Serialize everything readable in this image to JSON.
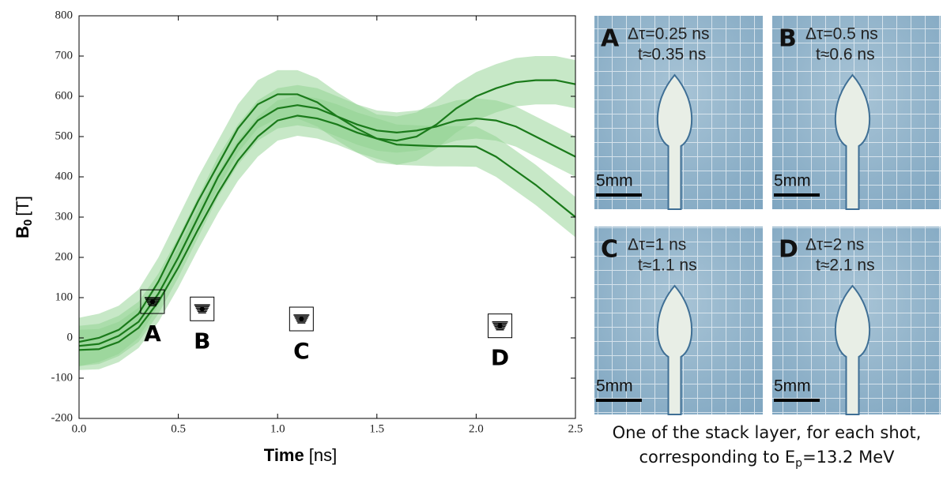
{
  "chart_data": {
    "type": "line",
    "ylabel": {
      "main": "B",
      "sub": "0",
      "unit": "[T]"
    },
    "xlabel": {
      "main": "Time",
      "unit": "[ns]"
    },
    "x": [
      0,
      0.1,
      0.2,
      0.3,
      0.4,
      0.5,
      0.6,
      0.7,
      0.8,
      0.9,
      1.0,
      1.1,
      1.2,
      1.3,
      1.4,
      1.5,
      1.6,
      1.7,
      1.8,
      1.9,
      2.0,
      2.1,
      2.2,
      2.3,
      2.4,
      2.5
    ],
    "series": [
      {
        "color": "#1a7a1a",
        "error": 60,
        "values": [
          -10,
          0,
          20,
          60,
          140,
          240,
          340,
          430,
          520,
          580,
          605,
          605,
          585,
          550,
          520,
          495,
          490,
          500,
          530,
          570,
          600,
          620,
          635,
          640,
          640,
          630
        ]
      },
      {
        "color": "#1a7a1a",
        "error": 50,
        "values": [
          -20,
          -15,
          5,
          40,
          110,
          200,
          300,
          400,
          480,
          540,
          570,
          578,
          570,
          550,
          530,
          515,
          510,
          515,
          525,
          540,
          545,
          540,
          525,
          500,
          475,
          450
        ]
      },
      {
        "color": "#1a7a1a",
        "error": 50,
        "values": [
          -30,
          -28,
          -10,
          25,
          90,
          175,
          270,
          360,
          440,
          500,
          540,
          552,
          545,
          530,
          510,
          495,
          480,
          478,
          476,
          476,
          475,
          450,
          415,
          380,
          340,
          300
        ]
      }
    ],
    "band_color": "#8fd18f",
    "markers": {
      "x": [
        0.37,
        0.62,
        1.12,
        2.12
      ],
      "values": [
        90,
        72,
        47,
        30
      ],
      "labels": [
        "A",
        "B",
        "C",
        "D"
      ]
    },
    "xlim": [
      0,
      2.5
    ],
    "xticks": [
      {
        "value": 0,
        "label": "0.0"
      },
      {
        "value": 0.5,
        "label": "0.5"
      },
      {
        "value": 1,
        "label": "1.0"
      },
      {
        "value": 1.5,
        "label": "1.5"
      },
      {
        "value": 2,
        "label": "2.0"
      },
      {
        "value": 2.5,
        "label": "2.5"
      }
    ],
    "ylim": [
      -200,
      800
    ],
    "yticks": [
      -200,
      -100,
      0,
      100,
      200,
      300,
      400,
      500,
      600,
      700,
      800
    ]
  },
  "images": [
    {
      "letter": "A",
      "line1": "Δτ=0.25 ns",
      "line2": "t≈0.35 ns",
      "scale": "5mm"
    },
    {
      "letter": "B",
      "line1": "Δτ=0.5 ns",
      "line2": "t≈0.6 ns",
      "scale": "5mm"
    },
    {
      "letter": "C",
      "line1": "Δτ=1 ns",
      "line2": "t≈1.1 ns",
      "scale": "5mm"
    },
    {
      "letter": "D",
      "line1": "Δτ=2 ns",
      "line2": "t≈2.1 ns",
      "scale": "5mm"
    }
  ],
  "caption": {
    "line1": "One of the stack layer, for each shot,",
    "line2_start": "corresponding to E",
    "line2_sub": "p",
    "line2_end": "=13.2 MeV"
  }
}
